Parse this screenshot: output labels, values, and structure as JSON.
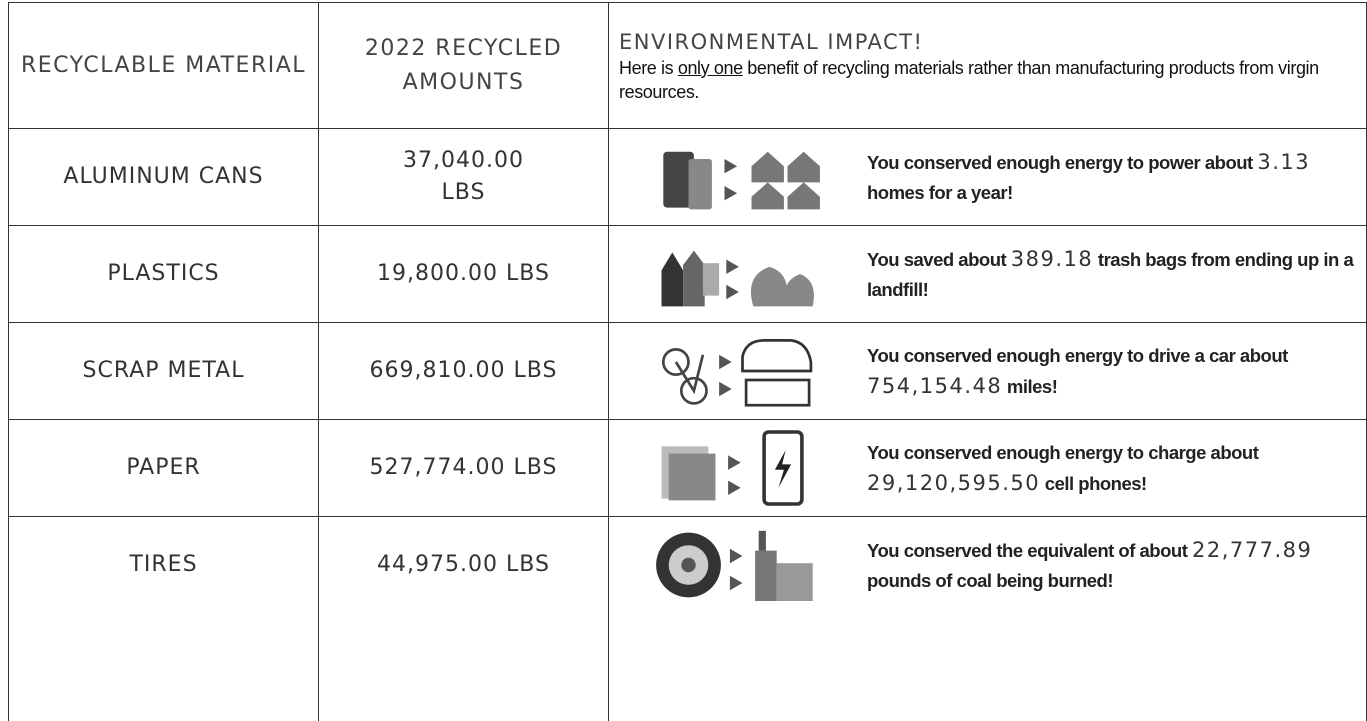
{
  "header": {
    "material": "RECYCLABLE MATERIAL",
    "amount": "2022 RECYCLED AMOUNTS",
    "impact_title": "ENVIRONMENTAL IMPACT!",
    "impact_note": {
      "before": "Here is ",
      "underlined": "only one",
      "after": " benefit of recycling materials rather than manufacturing products from virgin resources."
    }
  },
  "rows": [
    {
      "material": "ALUMINUM CANS",
      "amount": "37,040.00\nLBS",
      "impact": {
        "before": " You conserved enough energy to power about ",
        "number": "3.13",
        "after": " homes for a year!"
      }
    },
    {
      "material": "PLASTICS",
      "amount": "19,800.00 LBS",
      "impact": {
        "before": "You saved about ",
        "number": "389.18",
        "after": " trash bags from ending up in a landfill!"
      }
    },
    {
      "material": "SCRAP METAL",
      "amount": "669,810.00 LBS",
      "impact": {
        "before": "You conserved enough energy to drive a car about ",
        "number": "754,154.48",
        "after": " miles!"
      }
    },
    {
      "material": "PAPER",
      "amount": "527,774.00 LBS",
      "impact": {
        "before": " You conserved enough energy to charge about ",
        "number": "29,120,595.50",
        "after": " cell phones!"
      }
    },
    {
      "material": "TIRES",
      "amount": "44,975.00 LBS",
      "impact": {
        "before": "You conserved the equivalent of about ",
        "number": "22,777.89",
        "after": " pounds of coal being burned!"
      }
    }
  ]
}
